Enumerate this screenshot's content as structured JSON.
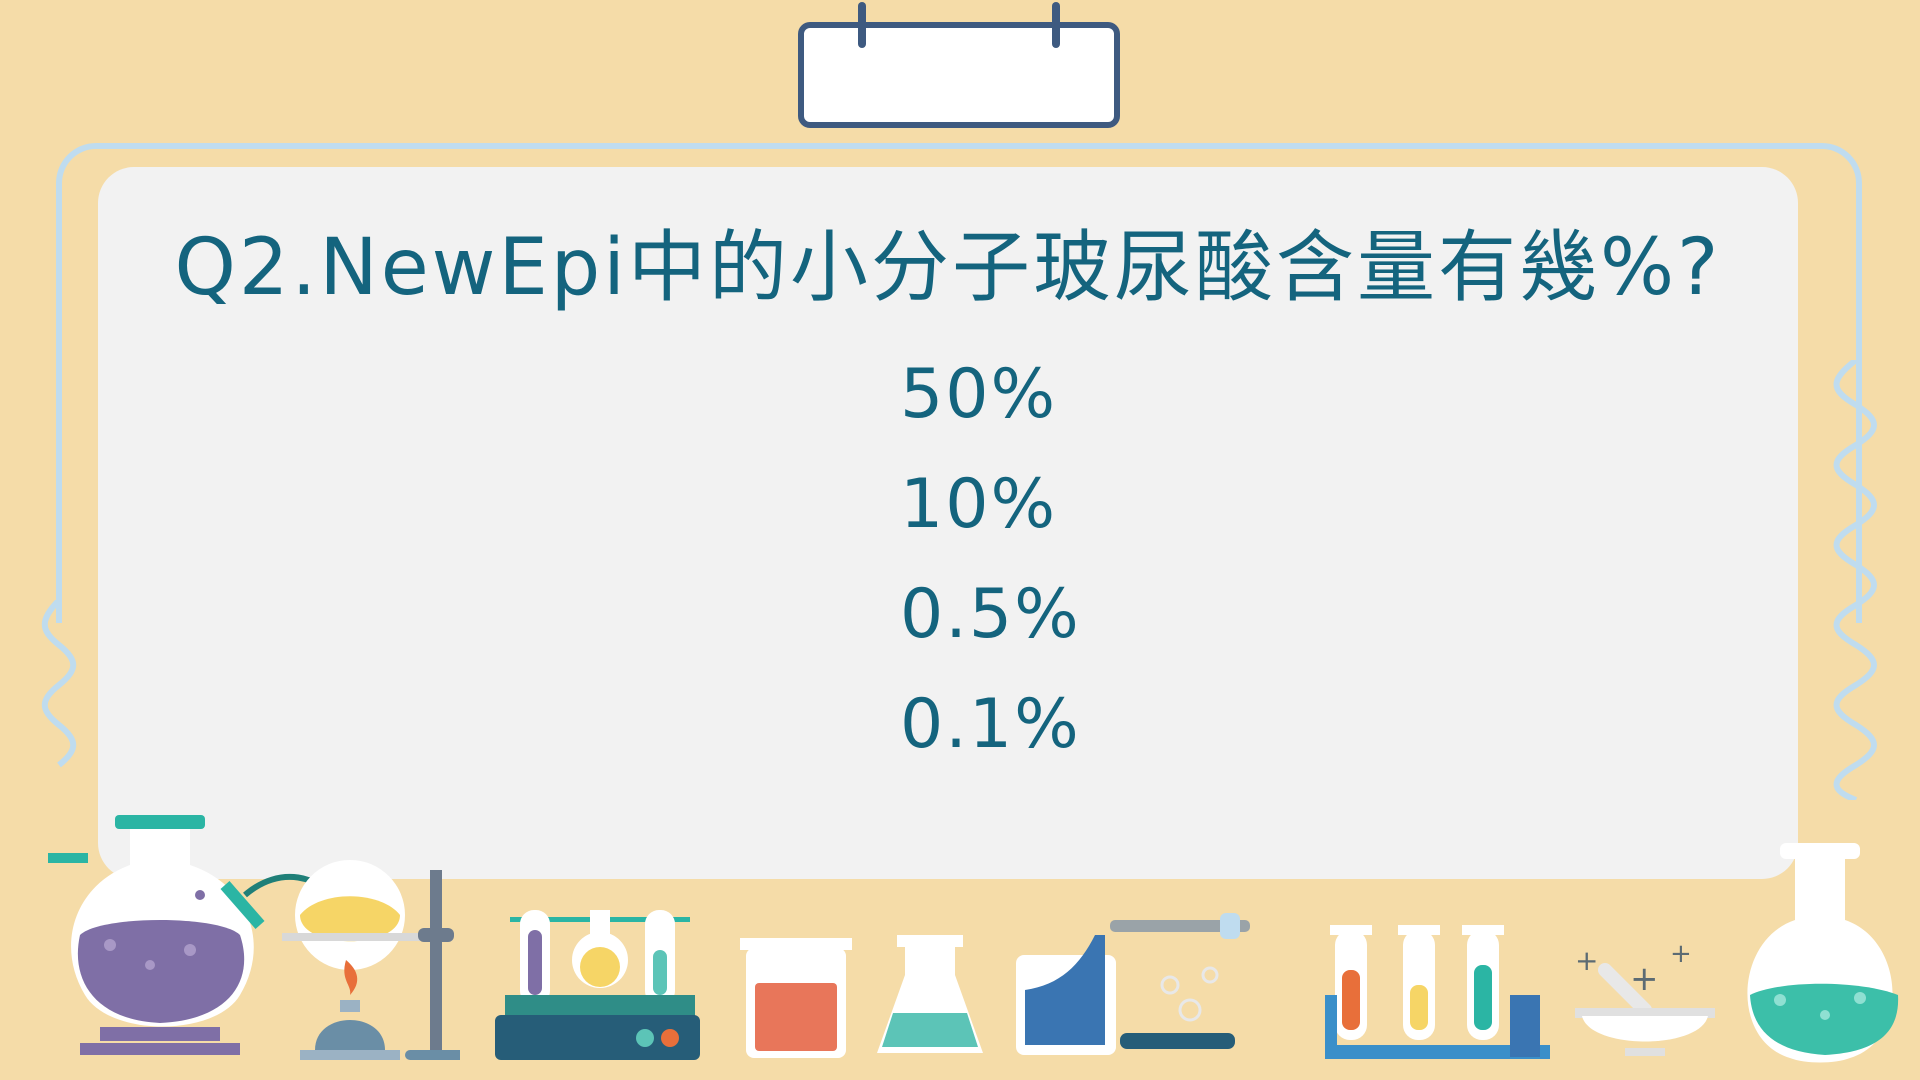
{
  "question": "Q2.NewEpi中的小分子玻尿酸含量有幾%?",
  "options": [
    "50%",
    "10%",
    "0.5%",
    "0.1%"
  ],
  "colors": {
    "background": "#f5dca8",
    "board": "#f2f2f2",
    "text": "#14647e",
    "frame": "#bfdcef",
    "tab_border": "#3e5a80"
  },
  "decorations": [
    "round-flask-icon",
    "alcohol-lamp-icon",
    "test-tube-rack-icon",
    "beaker-icon",
    "erlenmeyer-flask-icon",
    "dropper-icon",
    "test-tubes-icon",
    "mortar-pestle-icon",
    "round-bottom-flask-icon"
  ]
}
